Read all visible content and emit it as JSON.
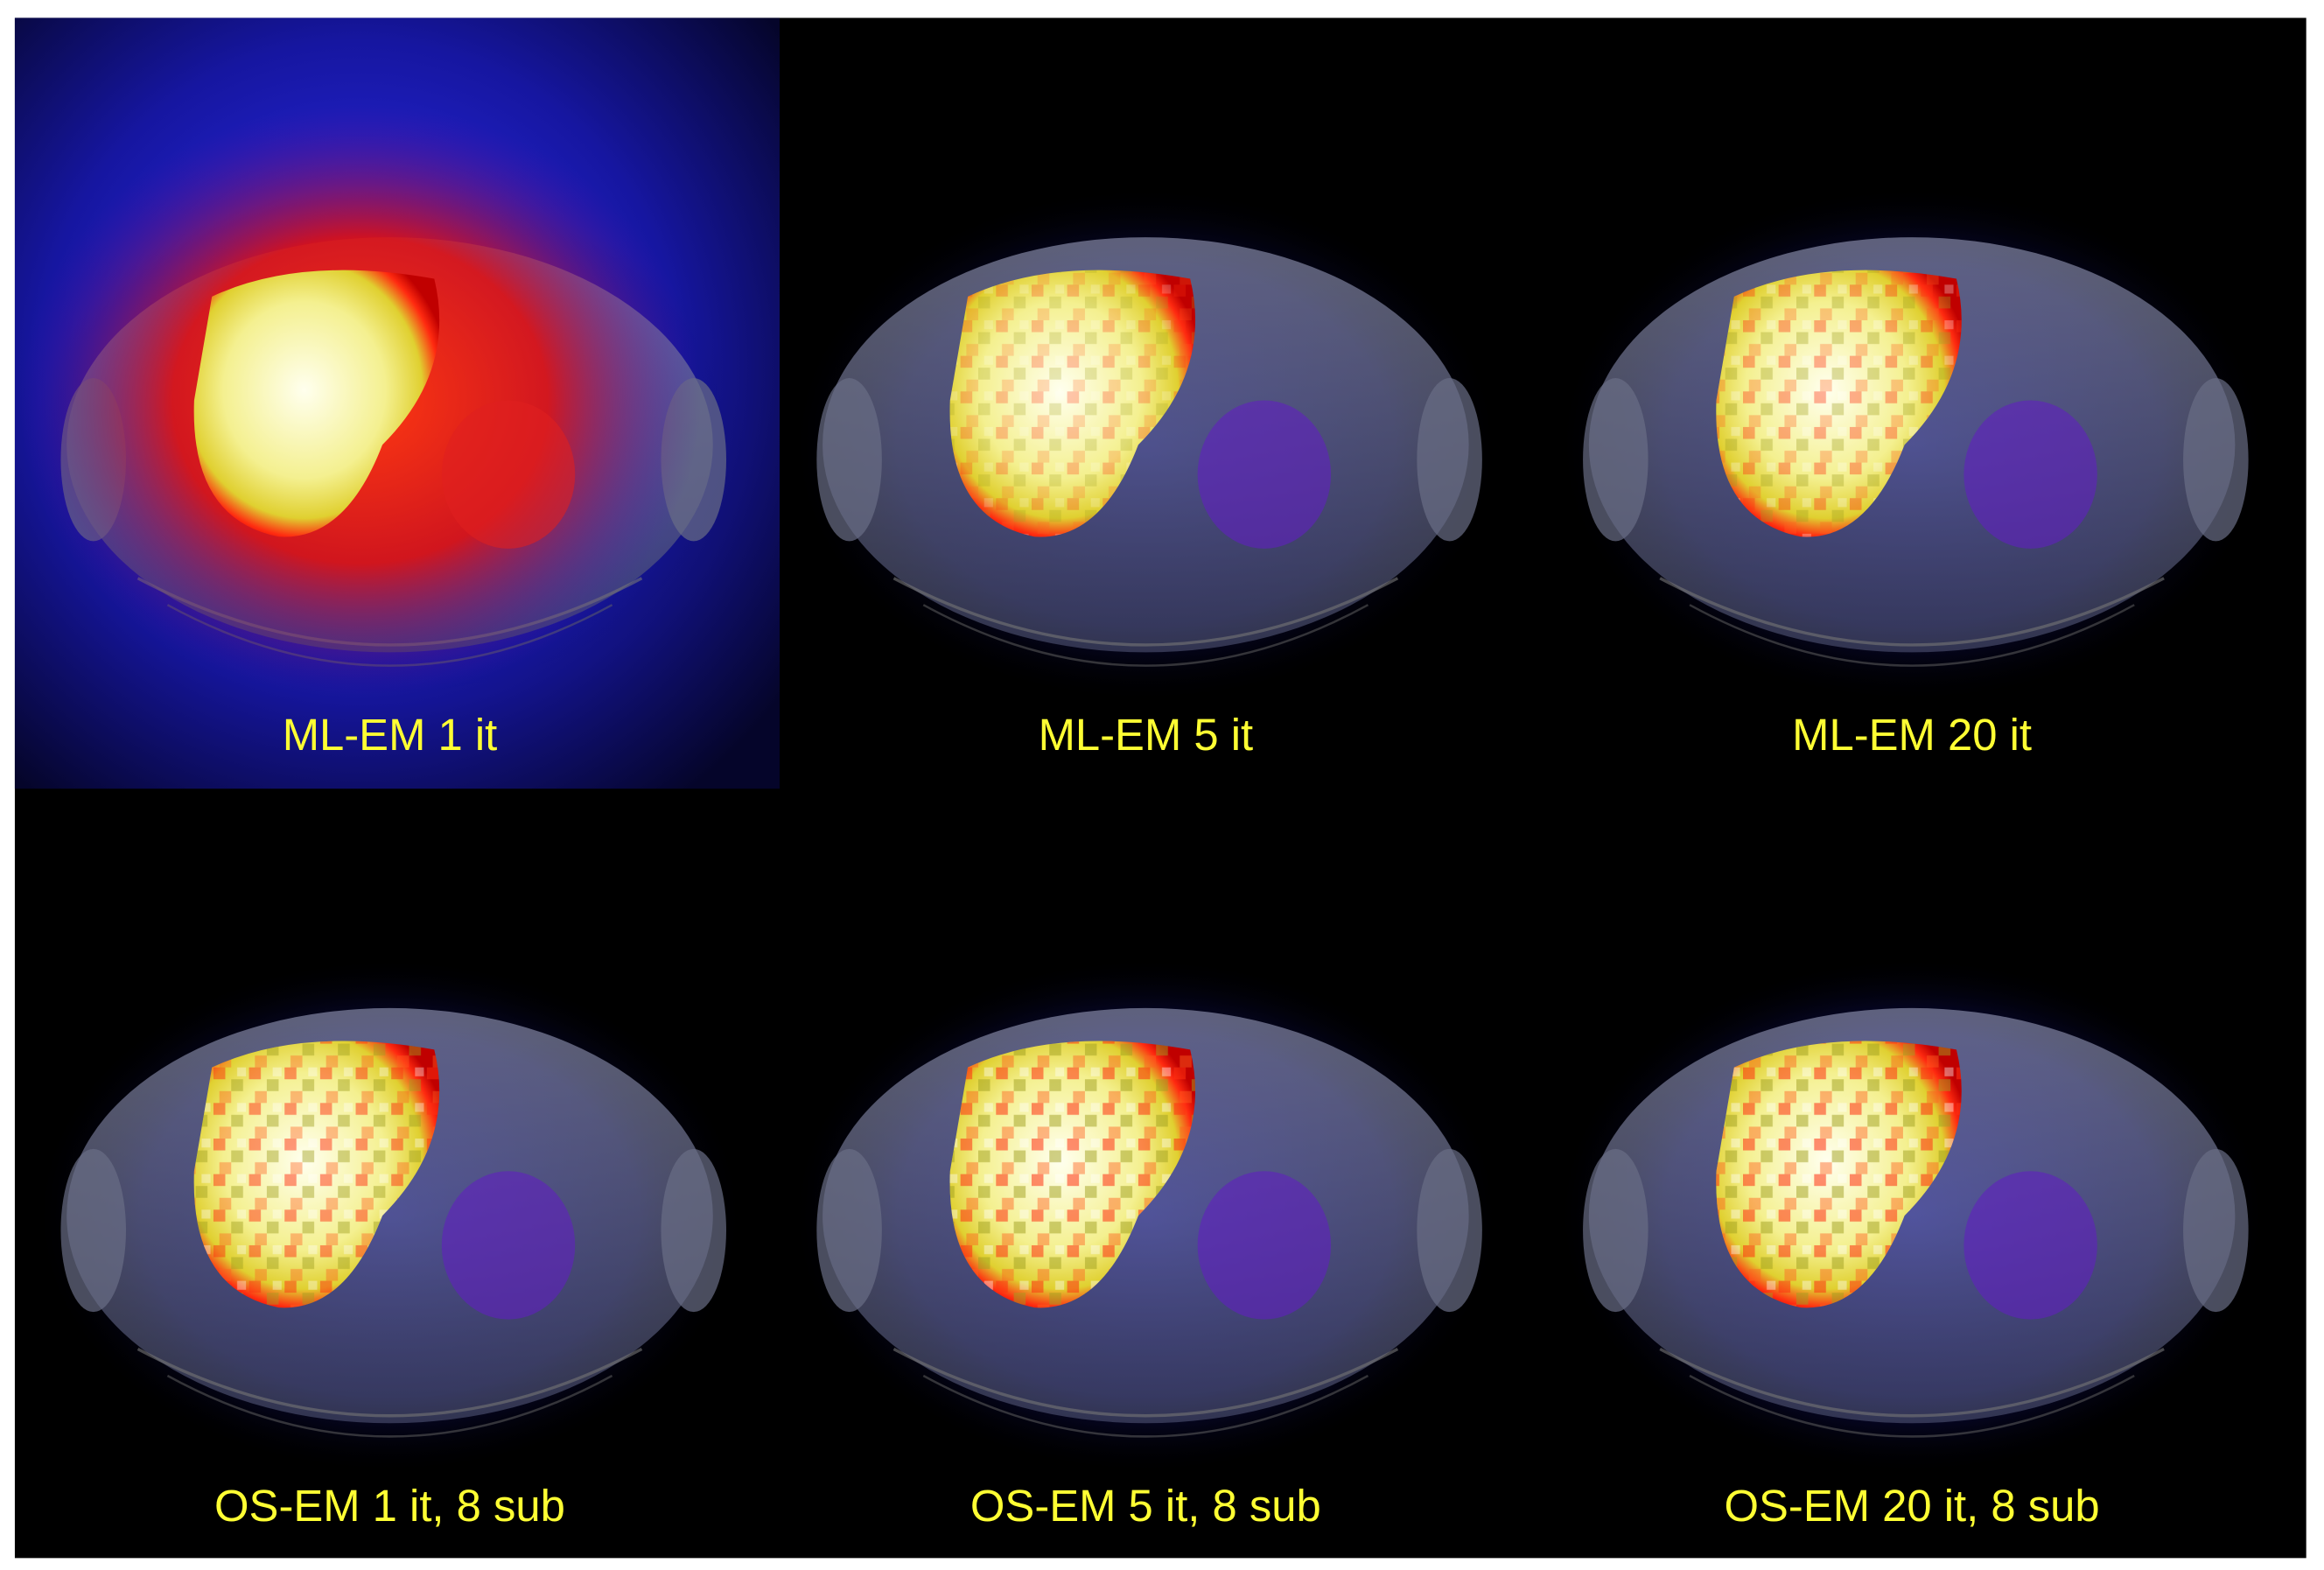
{
  "panels": [
    {
      "label": "ML-EM 1 it"
    },
    {
      "label": "ML-EM 5 it"
    },
    {
      "label": "ML-EM 20 it"
    },
    {
      "label": "OS-EM 1 it, 8 sub"
    },
    {
      "label": "OS-EM 5 it, 8 sub"
    },
    {
      "label": "OS-EM 20 it, 8 sub"
    }
  ]
}
